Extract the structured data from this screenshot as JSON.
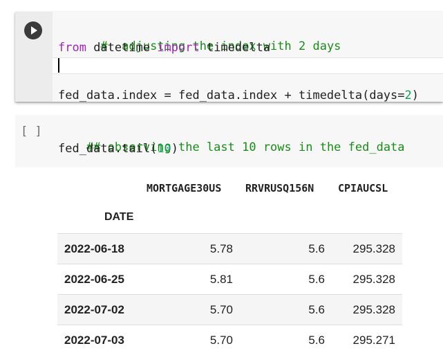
{
  "cell1": {
    "line1_comment": "#  adjusting the index with 2 days",
    "line2_from": "from",
    "line2_mod": " datetime ",
    "line2_import": "import",
    "line2_name": " timedelta",
    "line4_pre": "fed_data.index = fed_data.index + timedelta(days=",
    "line4_num": "2",
    "line4_post": ")"
  },
  "cell2": {
    "run_indicator": "[ ]",
    "line1_comment": "## observing the last 10 rows in the fed_data",
    "line2_pre": "fed_data.tail(",
    "line2_num": "10",
    "line2_post": ")"
  },
  "output": {
    "columns": [
      "MORTGAGE30US",
      "RRVRUSQ156N",
      "CPIAUCSL"
    ],
    "index_name": "DATE",
    "rows": [
      {
        "date": "2022-06-18",
        "mortgage": "5.78",
        "rrvr": "5.6",
        "cpi": "295.328"
      },
      {
        "date": "2022-06-25",
        "mortgage": "5.81",
        "rrvr": "5.6",
        "cpi": "295.328"
      },
      {
        "date": "2022-07-02",
        "mortgage": "5.70",
        "rrvr": "5.6",
        "cpi": "295.328"
      },
      {
        "date": "2022-07-03",
        "mortgage": "5.70",
        "rrvr": "5.6",
        "cpi": "295.271"
      }
    ]
  }
}
